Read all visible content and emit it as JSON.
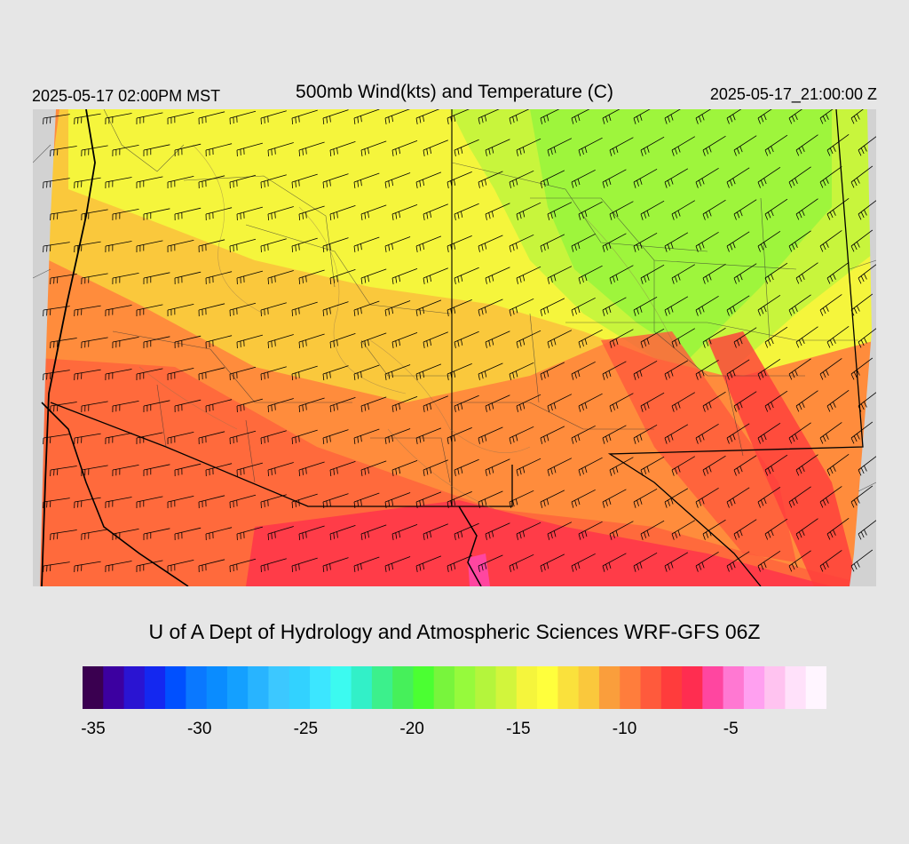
{
  "header": {
    "local_time": "2025-05-17 02:00PM MST",
    "title": "500mb Wind(kts) and Temperature (C)",
    "valid_time": "2025-05-17_21:00:00 Z"
  },
  "credit": "U of A Dept of Hydrology and Atmospheric Sciences WRF-GFS 06Z",
  "colorbar": {
    "colors": [
      "#3a0050",
      "#3c00a0",
      "#2a14d2",
      "#1428f0",
      "#0050ff",
      "#0a78ff",
      "#0a8cff",
      "#14a0ff",
      "#28b4ff",
      "#3cc8ff",
      "#32d2ff",
      "#3ce6ff",
      "#3cfaf0",
      "#32f0c8",
      "#3cf08c",
      "#46f05a",
      "#4bff32",
      "#78f53c",
      "#96fa3c",
      "#b4f53c",
      "#d2f53c",
      "#f5f53c",
      "#ffff3c",
      "#fae13c",
      "#fac83c",
      "#fa9e3c",
      "#ff7d3c",
      "#ff5a3c",
      "#ff3c3c",
      "#ff2d50",
      "#ff46a0",
      "#ff78d2",
      "#ffa0f0",
      "#ffc3f0",
      "#ffe1fa",
      "#fff5ff"
    ],
    "tick_labels": [
      "-35",
      "-30",
      "-25",
      "-20",
      "-15",
      "-10",
      "-5"
    ],
    "tick_values": [
      -35,
      -30,
      -25,
      -20,
      -15,
      -10,
      -5
    ],
    "min": -35.5,
    "max": -0.5
  },
  "map": {
    "field": "500mb temperature",
    "temperature_colors": {
      "cold": "#9ef53c",
      "cool": "#f5f53c",
      "mid": "#fac83c",
      "warm": "#ff9a3c",
      "warmer": "#ff6a3c",
      "hot": "#ff3c3c",
      "hottest": "#ff46a0"
    },
    "missing_color": "#d2d2d2"
  }
}
